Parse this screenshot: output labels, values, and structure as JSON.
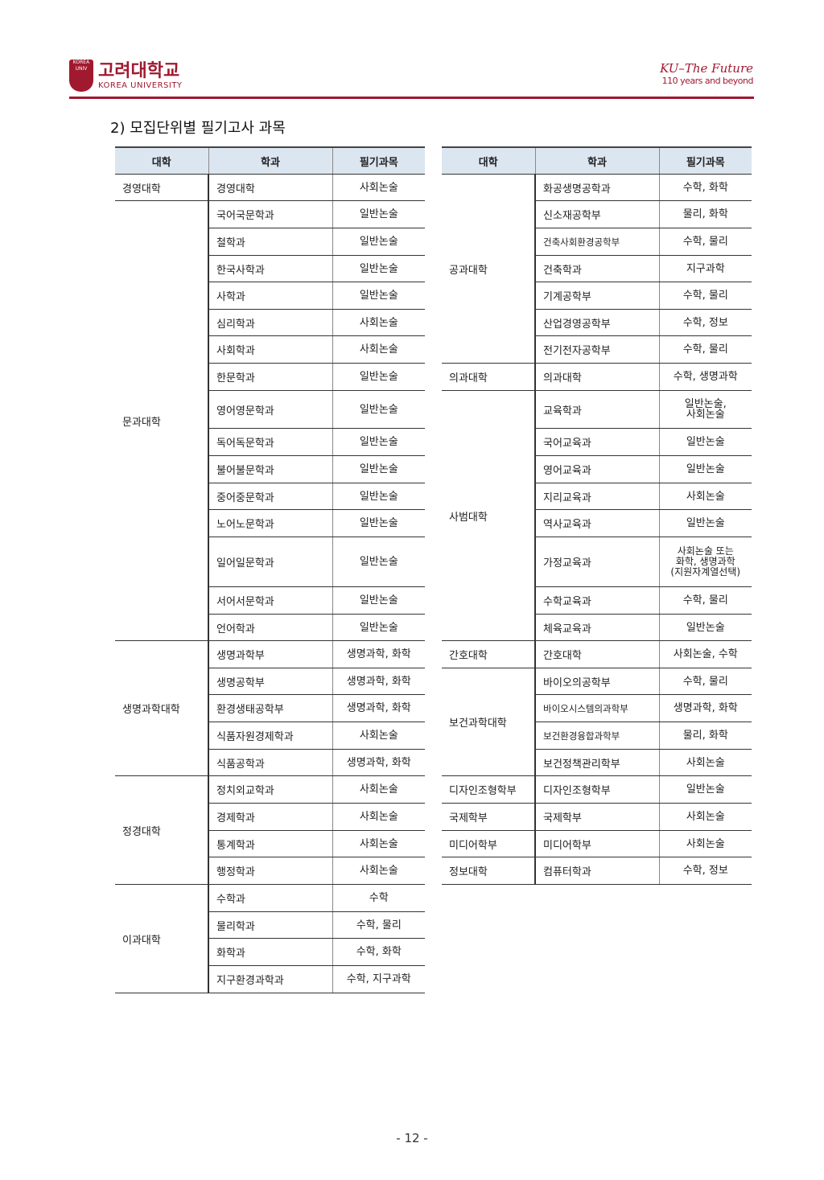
{
  "header": {
    "logo_kr": "고려대학교",
    "logo_en": "KOREA UNIVERSITY",
    "slogan_line1": "KU–The Future",
    "slogan_line2": "110 years and beyond"
  },
  "section_title": "2) 모집단위별 필기고사 과목",
  "columns": [
    "대학",
    "학과",
    "필기과목"
  ],
  "left_table": [
    {
      "college": "경영대학",
      "rows": [
        [
          "경영대학",
          "사회논술"
        ]
      ]
    },
    {
      "college": "문과대학",
      "rows": [
        [
          "국어국문학과",
          "일반논술"
        ],
        [
          "철학과",
          "일반논술"
        ],
        [
          "한국사학과",
          "일반논술"
        ],
        [
          "사학과",
          "일반논술"
        ],
        [
          "심리학과",
          "사회논술"
        ],
        [
          "사회학과",
          "사회논술"
        ],
        [
          "한문학과",
          "일반논술"
        ],
        [
          "영어영문학과",
          "일반논술"
        ],
        [
          "독어독문학과",
          "일반논술"
        ],
        [
          "불어불문학과",
          "일반논술"
        ],
        [
          "중어중문학과",
          "일반논술"
        ],
        [
          "노어노문학과",
          "일반논술"
        ],
        [
          "일어일문학과",
          "일반논술"
        ],
        [
          "서어서문학과",
          "일반논술"
        ],
        [
          "언어학과",
          "일반논술"
        ]
      ]
    },
    {
      "college": "생명과학대학",
      "rows": [
        [
          "생명과학부",
          "생명과학, 화학"
        ],
        [
          "생명공학부",
          "생명과학, 화학"
        ],
        [
          "환경생태공학부",
          "생명과학, 화학"
        ],
        [
          "식품자원경제학과",
          "사회논술"
        ],
        [
          "식품공학과",
          "생명과학, 화학"
        ]
      ]
    },
    {
      "college": "정경대학",
      "rows": [
        [
          "정치외교학과",
          "사회논술"
        ],
        [
          "경제학과",
          "사회논술"
        ],
        [
          "통계학과",
          "사회논술"
        ],
        [
          "행정학과",
          "사회논술"
        ]
      ]
    },
    {
      "college": "이과대학",
      "rows": [
        [
          "수학과",
          "수학"
        ],
        [
          "물리학과",
          "수학, 물리"
        ],
        [
          "화학과",
          "수학, 화학"
        ],
        [
          "지구환경과학과",
          "수학, 지구과학"
        ]
      ]
    }
  ],
  "right_table": [
    {
      "college": "공과대학",
      "rows": [
        [
          "화공생명공학과",
          "수학, 화학"
        ],
        [
          "신소재공학부",
          "물리, 화학"
        ],
        [
          "건축사회환경공학부",
          "수학, 물리"
        ],
        [
          "건축학과",
          "지구과학"
        ],
        [
          "기계공학부",
          "수학, 물리"
        ],
        [
          "산업경영공학부",
          "수학, 정보"
        ],
        [
          "전기전자공학부",
          "수학, 물리"
        ]
      ]
    },
    {
      "college": "의과대학",
      "rows": [
        [
          "의과대학",
          "수학, 생명과학"
        ]
      ]
    },
    {
      "college": "사범대학",
      "rows": [
        [
          "교육학과",
          "일반논술,\n사회논술"
        ],
        [
          "국어교육과",
          "일반논술"
        ],
        [
          "영어교육과",
          "일반논술"
        ],
        [
          "지리교육과",
          "사회논술"
        ],
        [
          "역사교육과",
          "일반논술"
        ],
        [
          "가정교육과",
          "사회논술 또는\n화학, 생명과학\n(지원자계열선택)"
        ],
        [
          "수학교육과",
          "수학, 물리"
        ],
        [
          "체육교육과",
          "일반논술"
        ]
      ]
    },
    {
      "college": "간호대학",
      "rows": [
        [
          "간호대학",
          "사회논술, 수학"
        ]
      ]
    },
    {
      "college": "보건과학대학",
      "rows": [
        [
          "바이오의공학부",
          "수학, 물리"
        ],
        [
          "바이오시스템의과학부",
          "생명과학, 화학"
        ],
        [
          "보건환경융합과학부",
          "물리, 화학"
        ],
        [
          "보건정책관리학부",
          "사회논술"
        ]
      ]
    },
    {
      "college": "디자인조형학부",
      "rows": [
        [
          "디자인조형학부",
          "일반논술"
        ]
      ]
    },
    {
      "college": "국제학부",
      "rows": [
        [
          "국제학부",
          "사회논술"
        ]
      ]
    },
    {
      "college": "미디어학부",
      "rows": [
        [
          "미디어학부",
          "사회논술"
        ]
      ]
    },
    {
      "college": "정보대학",
      "rows": [
        [
          "컴퓨터학과",
          "수학, 정보"
        ]
      ]
    }
  ],
  "page_number": "- 12 -"
}
